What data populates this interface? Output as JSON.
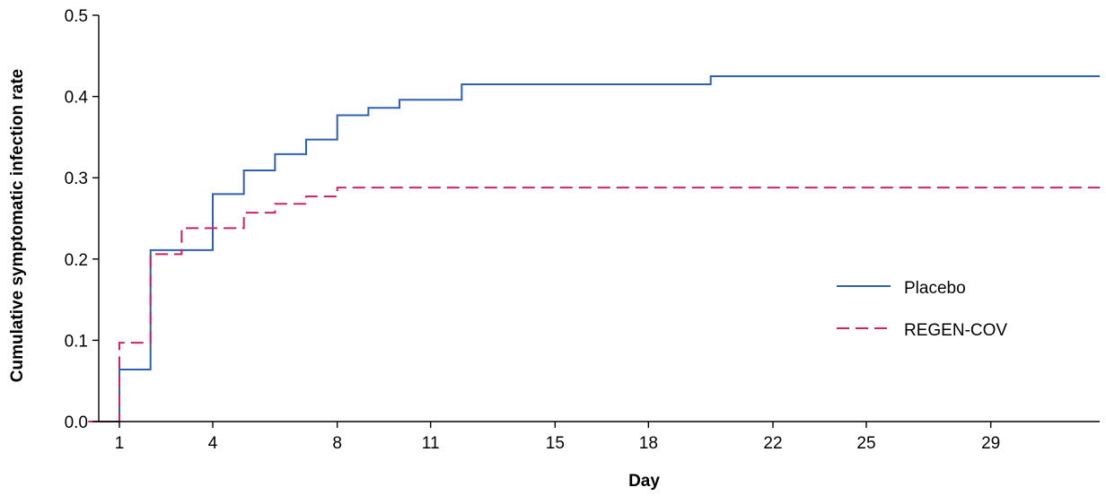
{
  "chart_data": {
    "type": "line",
    "xlabel": "Day",
    "ylabel": "Cumulative symptomatic infection rate",
    "xlim": [
      0,
      32.5
    ],
    "ylim": [
      0,
      0.5
    ],
    "x_ticks": [
      1,
      4,
      8,
      11,
      15,
      18,
      22,
      25,
      29
    ],
    "y_ticks": [
      0.0,
      0.1,
      0.2,
      0.3,
      0.4,
      0.5
    ],
    "y_tick_labels": [
      "0.0",
      "0.1",
      "0.2",
      "0.3",
      "0.4",
      "0.5"
    ],
    "grid": false,
    "legend_position": "right",
    "step": true,
    "series": [
      {
        "name": "Placebo",
        "color": "#2f5fb3",
        "dash": "solid",
        "points": [
          [
            0,
            0.0
          ],
          [
            1,
            0.064
          ],
          [
            2,
            0.211
          ],
          [
            4,
            0.28
          ],
          [
            5,
            0.309
          ],
          [
            6,
            0.329
          ],
          [
            7,
            0.347
          ],
          [
            8,
            0.377
          ],
          [
            9,
            0.386
          ],
          [
            10,
            0.396
          ],
          [
            12,
            0.415
          ],
          [
            20,
            0.425
          ],
          [
            32.5,
            0.425
          ]
        ]
      },
      {
        "name": "REGEN-COV",
        "color": "#cc2266",
        "dash": "dashed",
        "points": [
          [
            0,
            0.0
          ],
          [
            1,
            0.097
          ],
          [
            2,
            0.206
          ],
          [
            3,
            0.238
          ],
          [
            5,
            0.257
          ],
          [
            6,
            0.268
          ],
          [
            7,
            0.277
          ],
          [
            8,
            0.288
          ],
          [
            32.5,
            0.288
          ]
        ]
      }
    ]
  }
}
